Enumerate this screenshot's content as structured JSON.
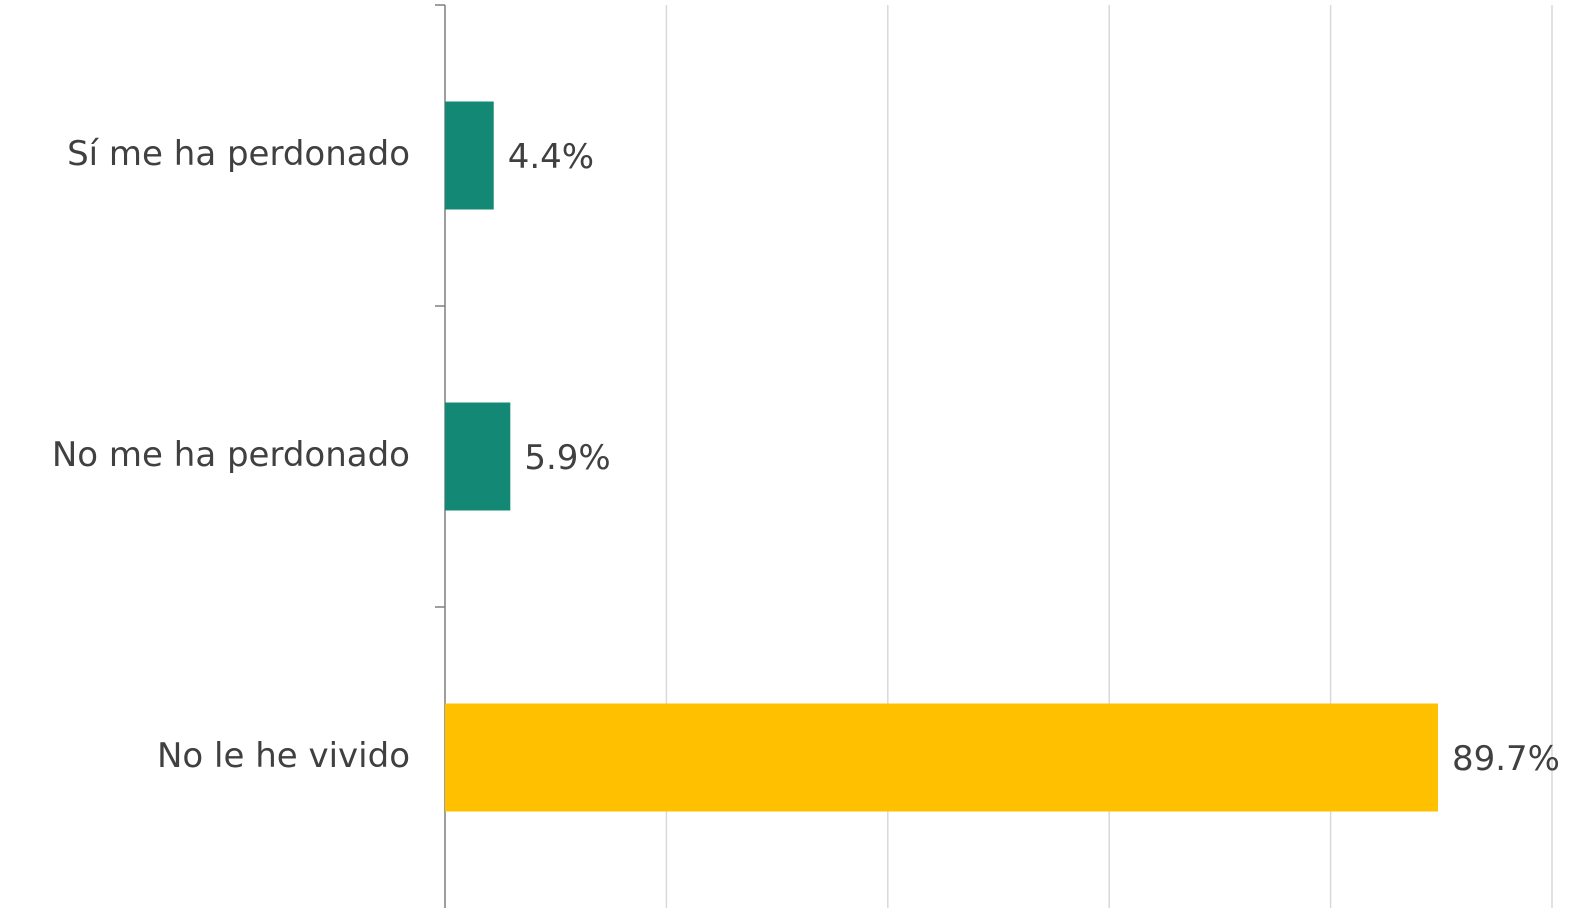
{
  "chart_data": {
    "type": "bar",
    "orientation": "horizontal",
    "categories": [
      "Sí me ha perdonado",
      "No me ha perdonado",
      "No le he vivido"
    ],
    "values": [
      4.4,
      5.9,
      89.7
    ],
    "value_labels": [
      "4.4%",
      "5.9%",
      "89.7%"
    ],
    "colors": [
      "#138874",
      "#138874",
      "#ffc000"
    ],
    "xlim": [
      0,
      100
    ],
    "xticks": [
      0,
      20,
      40,
      60,
      80,
      100
    ],
    "grid": true
  }
}
